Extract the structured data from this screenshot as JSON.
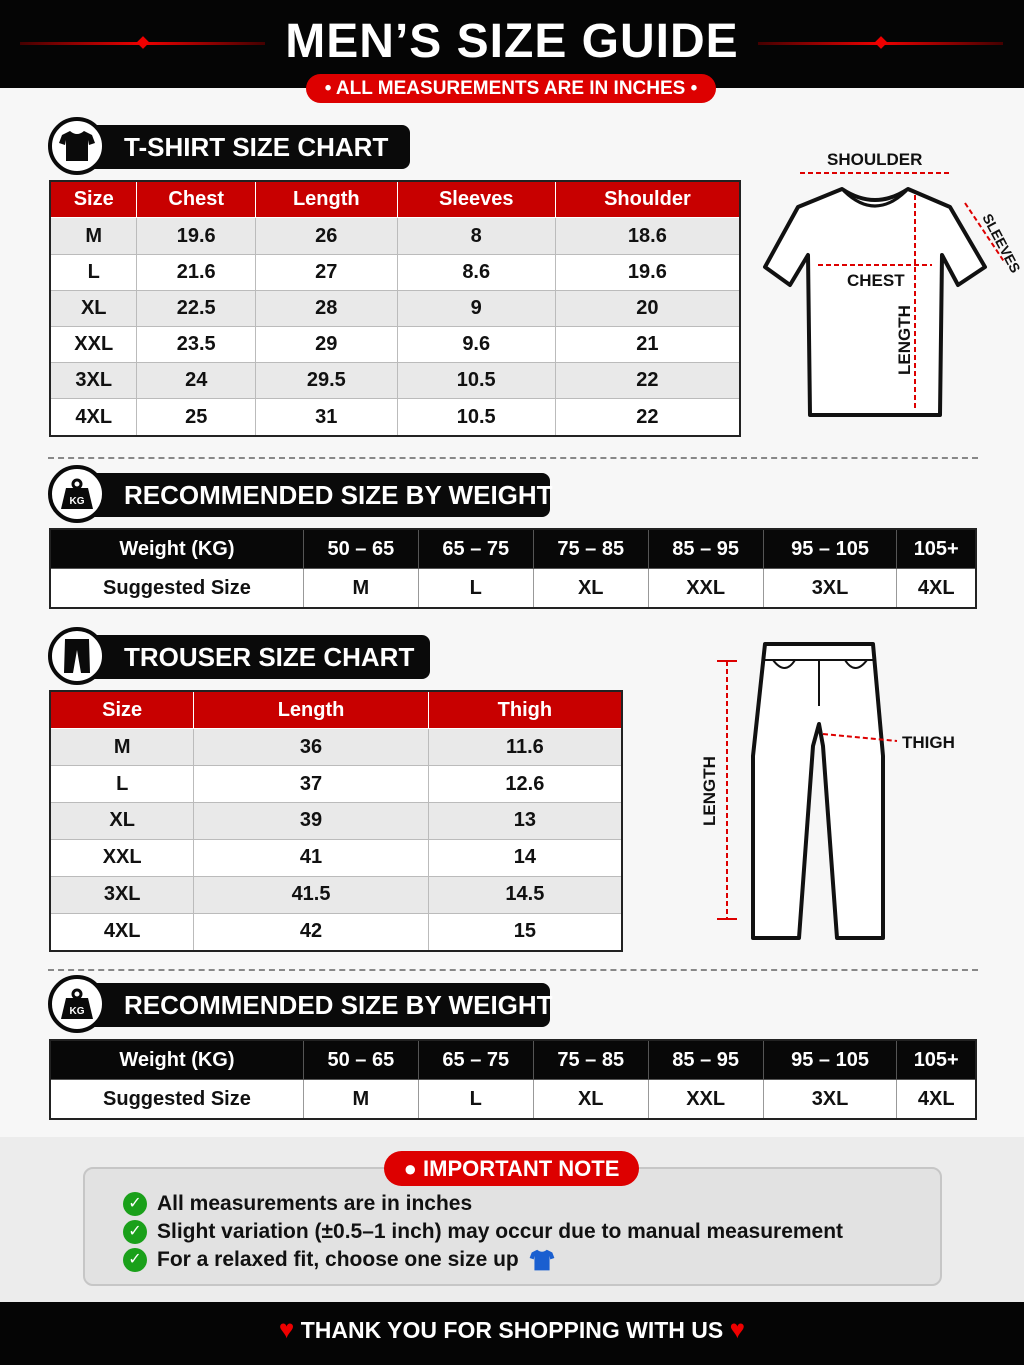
{
  "header": {
    "title": "MEN’S SIZE GUIDE",
    "subtitle": "• ALL MEASUREMENTS ARE IN INCHES •"
  },
  "tshirt": {
    "heading": "T-SHIRT SIZE CHART",
    "columns": [
      "Size",
      "Chest",
      "Length",
      "Sleeves",
      "Shoulder"
    ],
    "rows": [
      [
        "M",
        "19.6",
        "26",
        "8",
        "18.6"
      ],
      [
        "L",
        "21.6",
        "27",
        "8.6",
        "19.6"
      ],
      [
        "XL",
        "22.5",
        "28",
        "9",
        "20"
      ],
      [
        "XXL",
        "23.5",
        "29",
        "9.6",
        "21"
      ],
      [
        "3XL",
        "24",
        "29.5",
        "10.5",
        "22"
      ],
      [
        "4XL",
        "25",
        "31",
        "10.5",
        "22"
      ]
    ],
    "diagram_labels": {
      "shoulder": "SHOULDER",
      "chest": "CHEST",
      "length": "LENGTH",
      "sleeves": "SLEEVES"
    }
  },
  "weight1": {
    "heading": "RECOMMENDED SIZE BY WEIGHT",
    "rows": [
      [
        "Weight (KG)",
        "50 – 65",
        "65 – 75",
        "75 – 85",
        "85 – 95",
        "95 – 105",
        "105+"
      ],
      [
        "Suggested Size",
        "M",
        "L",
        "XL",
        "XXL",
        "3XL",
        "4XL"
      ]
    ],
    "icon_label": "KG"
  },
  "trouser": {
    "heading": "TROUSER SIZE CHART",
    "columns": [
      "Size",
      "Length",
      "Thigh"
    ],
    "rows": [
      [
        "M",
        "36",
        "11.6"
      ],
      [
        "L",
        "37",
        "12.6"
      ],
      [
        "XL",
        "39",
        "13"
      ],
      [
        "XXL",
        "41",
        "14"
      ],
      [
        "3XL",
        "41.5",
        "14.5"
      ],
      [
        "4XL",
        "42",
        "15"
      ]
    ],
    "diagram_labels": {
      "length": "LENGTH",
      "thigh": "THIGH"
    }
  },
  "weight2": {
    "heading": "RECOMMENDED SIZE BY WEIGHT",
    "rows": [
      [
        "Weight (KG)",
        "50 – 65",
        "65 – 75",
        "75 – 85",
        "85 – 95",
        "95 – 105",
        "105+"
      ],
      [
        "Suggested Size",
        "M",
        "L",
        "XL",
        "XXL",
        "3XL",
        "4XL"
      ]
    ],
    "icon_label": "KG"
  },
  "note": {
    "title": "IMPORTANT NOTE",
    "items": [
      "All measurements are in inches",
      "Slight variation (±0.5–1 inch) may occur due to manual measurement",
      "For a relaxed fit, choose one size up"
    ]
  },
  "footer": {
    "text": "THANK YOU FOR SHOPPING WITH US"
  },
  "colors": {
    "accent": "#d00000",
    "dark": "#050505",
    "check": "#1aa01a",
    "shirt_icon": "#1a5fd0"
  }
}
